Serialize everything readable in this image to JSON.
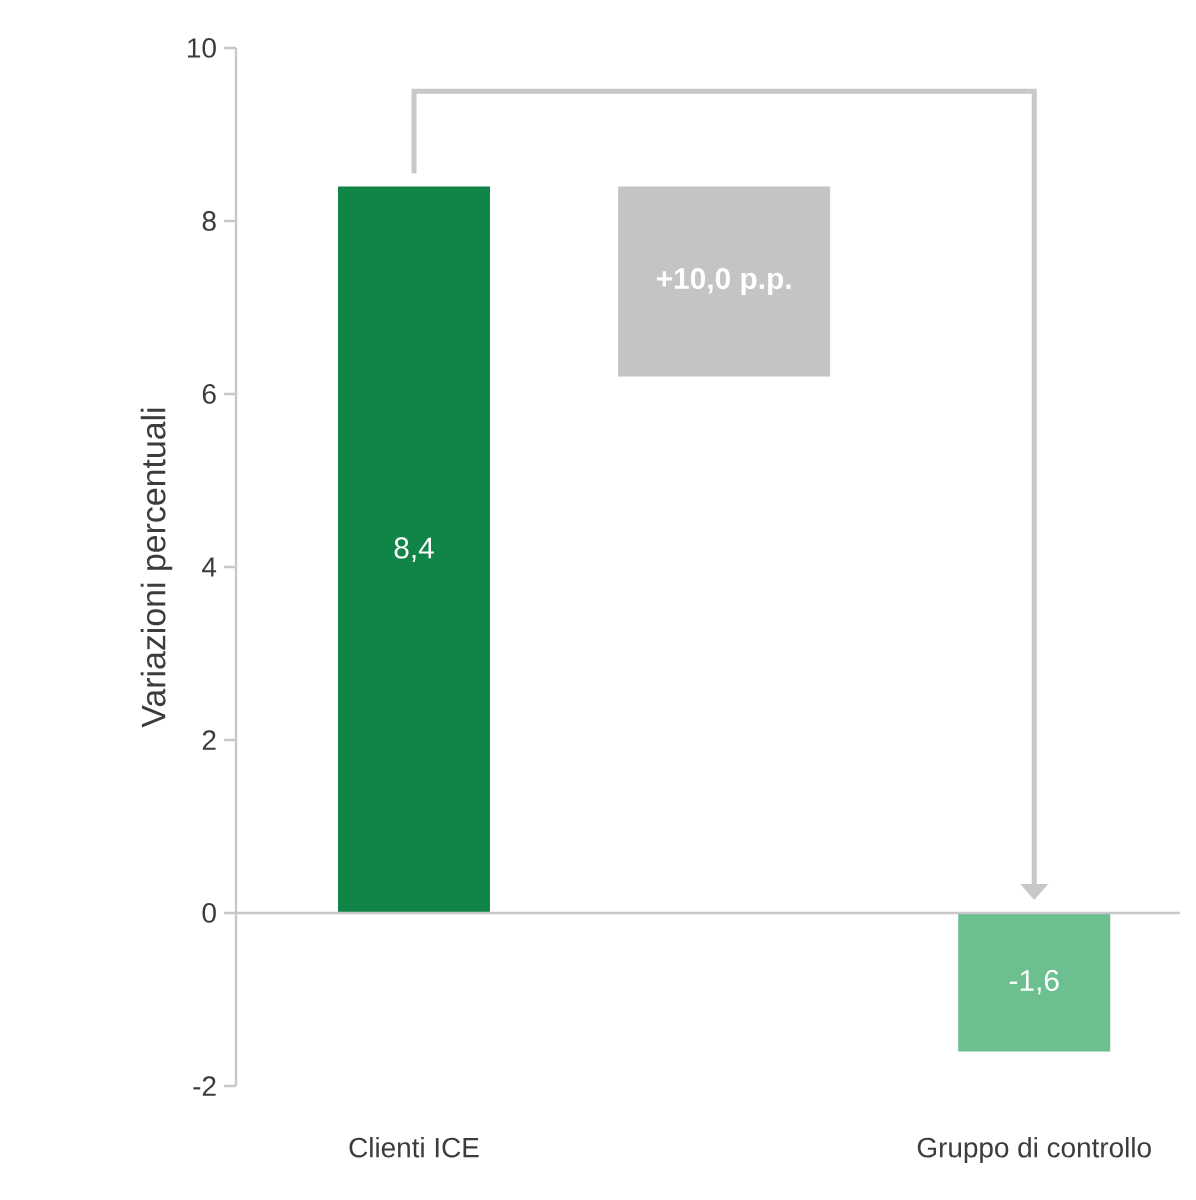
{
  "chart_data": {
    "type": "bar",
    "ylabel": "Variazioni percentuali",
    "categories": [
      "Clienti ICE",
      null,
      "Gruppo di controllo"
    ],
    "values": [
      8.4,
      null,
      -1.6
    ],
    "colors": [
      "#118447",
      null,
      "#6cbf8e"
    ],
    "value_labels": [
      "8,4",
      null,
      "-1,6"
    ],
    "ylim": [
      -2,
      10
    ],
    "yticks": [
      -2,
      0,
      2,
      4,
      6,
      8,
      10
    ],
    "annotations": [
      "+10,0 p.p."
    ]
  }
}
